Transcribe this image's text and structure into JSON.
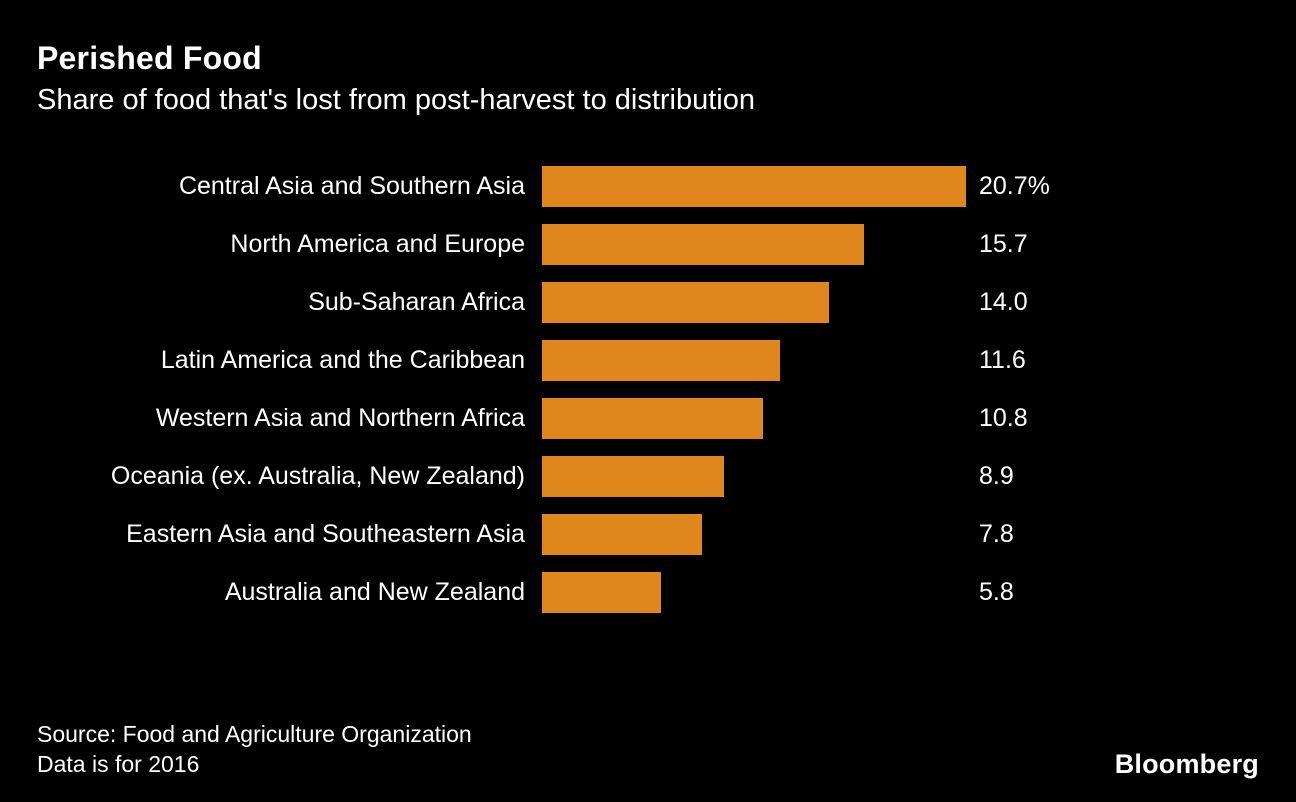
{
  "header": {
    "title": "Perished Food",
    "subtitle": "Share of food that's lost from post-harvest to distribution"
  },
  "footer": {
    "source_line": "Source: Food and Agriculture Organization",
    "note_line": "Data is for 2016",
    "brand": "Bloomberg"
  },
  "colors": {
    "background": "#000000",
    "bar": "#df861d",
    "text": "#ffffff"
  },
  "chart_data": {
    "type": "bar",
    "orientation": "horizontal",
    "title": "Perished Food",
    "subtitle": "Share of food that's lost from post-harvest to distribution",
    "categories": [
      "Central Asia and Southern Asia",
      "North America and Europe",
      "Sub-Saharan Africa",
      "Latin America and the Caribbean",
      "Western Asia and Northern Africa",
      "Oceania (ex. Australia, New Zealand)",
      "Eastern Asia and Southeastern Asia",
      "Australia and New Zealand"
    ],
    "values": [
      20.7,
      15.7,
      14.0,
      11.6,
      10.8,
      8.9,
      7.8,
      5.8
    ],
    "value_labels": [
      "20.7%",
      "15.7",
      "14.0",
      "11.6",
      "10.8",
      "8.9",
      "7.8",
      "5.8"
    ],
    "xlabel": "",
    "ylabel": "",
    "xlim": [
      0,
      20.7
    ],
    "grid": false,
    "legend": "none",
    "unit": "percent"
  }
}
